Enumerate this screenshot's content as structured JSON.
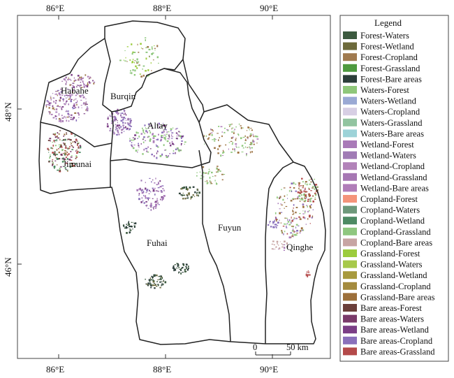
{
  "legend": {
    "title": "Legend",
    "items": [
      {
        "label": "Forest-Waters",
        "color": "#3c5a3f"
      },
      {
        "label": "Forest-Wetland",
        "color": "#6d6a3b"
      },
      {
        "label": "Forest-Cropland",
        "color": "#a07a4f"
      },
      {
        "label": "Forest-Grassland",
        "color": "#4e9a3f"
      },
      {
        "label": "Forest-Bare areas",
        "color": "#2c3e3a"
      },
      {
        "label": "Waters-Forest",
        "color": "#8fc77a"
      },
      {
        "label": "Waters-Wetland",
        "color": "#9aa9d4"
      },
      {
        "label": "Waters-Cropland",
        "color": "#d7cfe4"
      },
      {
        "label": "Waters-Grassland",
        "color": "#92c4a0"
      },
      {
        "label": "Waters-Bare areas",
        "color": "#9dd3d8"
      },
      {
        "label": "Wetland-Forest",
        "color": "#a97ab8"
      },
      {
        "label": "Wetland-Waters",
        "color": "#a07bb5"
      },
      {
        "label": "Wetland-Cropland",
        "color": "#b283b9"
      },
      {
        "label": "Wetland-Grassland",
        "color": "#a677b3"
      },
      {
        "label": "Wetland-Bare areas",
        "color": "#b07db8"
      },
      {
        "label": "Cropland-Forest",
        "color": "#f4947a"
      },
      {
        "label": "Cropland-Waters",
        "color": "#6d987a"
      },
      {
        "label": "Cropland-Wetland",
        "color": "#4d8a63"
      },
      {
        "label": "Cropland-Grassland",
        "color": "#8fc77f"
      },
      {
        "label": "Cropland-Bare areas",
        "color": "#c7a5a3"
      },
      {
        "label": "Grassland-Forest",
        "color": "#9ccc3d"
      },
      {
        "label": "Grassland-Waters",
        "color": "#a7c94a"
      },
      {
        "label": "Grassland-Wetland",
        "color": "#a89a3e"
      },
      {
        "label": "Grassland-Cropland",
        "color": "#a48b3f"
      },
      {
        "label": "Grassland-Bare areas",
        "color": "#9c6f3a"
      },
      {
        "label": "Bare areas-Forest",
        "color": "#6b3f3a"
      },
      {
        "label": "Bare areas-Waters",
        "color": "#7a3a6a"
      },
      {
        "label": "Bare areas-Wetland",
        "color": "#7b3e86"
      },
      {
        "label": "Bare areas-Cropland",
        "color": "#8a70bb"
      },
      {
        "label": "Bare areas-Grassland",
        "color": "#b44a4a"
      }
    ]
  },
  "axes": {
    "top_ticks": [
      "86°E",
      "88°E",
      "90°E"
    ],
    "bottom_ticks": [
      "86°E",
      "88°E",
      "90°E"
    ],
    "left_ticks": [
      "48°N",
      "46°N"
    ]
  },
  "regions": [
    "Habahe",
    "Burqin",
    "Altay",
    "Jimunai",
    "Fuhai",
    "Fuyun",
    "Qinghe"
  ],
  "scale_bar": {
    "start": "0",
    "end": "50 km"
  }
}
